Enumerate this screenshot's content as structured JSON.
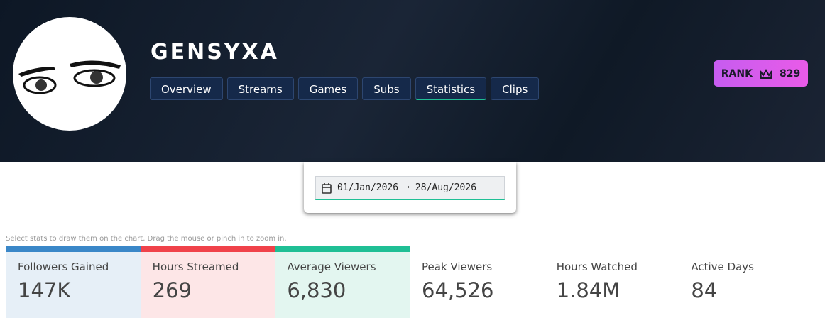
{
  "profile": {
    "name": "GENSYXA",
    "tabs": [
      "Overview",
      "Streams",
      "Games",
      "Subs",
      "Statistics",
      "Clips"
    ],
    "active_tab": 4,
    "rank": {
      "label": "RANK",
      "value": "829"
    }
  },
  "date_range": {
    "start": "01/Jan/2026",
    "separator": "➞",
    "end": "28/Aug/2026"
  },
  "hint": "Select stats to draw them on the chart. Drag the mouse or pinch in to zoom in.",
  "stats": [
    {
      "label": "Followers Gained",
      "value": "147K",
      "color": "#3a87c8",
      "background": "#e6eff7"
    },
    {
      "label": "Hours Streamed",
      "value": "269",
      "color": "#f0424a",
      "background": "#fde6e7"
    },
    {
      "label": "Average Viewers",
      "value": "6,830",
      "color": "#1fbf95",
      "background": "#e3f6f0"
    },
    {
      "label": "Peak Viewers",
      "value": "64,526",
      "color": null,
      "background": "#ffffff"
    },
    {
      "label": "Hours Watched",
      "value": "1.84M",
      "color": null,
      "background": "#ffffff"
    },
    {
      "label": "Active Days",
      "value": "84",
      "color": null,
      "background": "#ffffff"
    }
  ]
}
